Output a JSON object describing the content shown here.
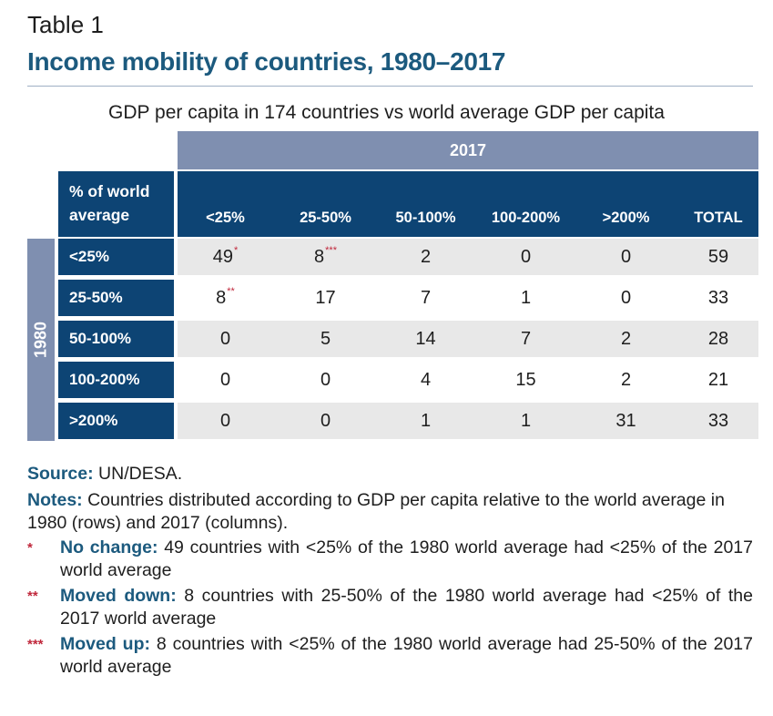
{
  "table_label": "Table 1",
  "title": "Income mobility of countries, 1980–2017",
  "subtitle": "GDP per capita in 174 countries vs world average GDP per capita",
  "column_group": "2017",
  "row_group": "1980",
  "corner_header": [
    "% of world",
    "average"
  ],
  "columns": [
    "<25%",
    "25-50%",
    "50-100%",
    "100-200%",
    ">200%",
    "TOTAL"
  ],
  "rows": [
    {
      "label": "<25%",
      "cells": [
        {
          "v": "49",
          "m": "*"
        },
        {
          "v": "8",
          "m": "***"
        },
        {
          "v": "2",
          "m": ""
        },
        {
          "v": "0",
          "m": ""
        },
        {
          "v": "0",
          "m": ""
        },
        {
          "v": "59",
          "m": ""
        }
      ]
    },
    {
      "label": "25-50%",
      "cells": [
        {
          "v": "8",
          "m": "**"
        },
        {
          "v": "17",
          "m": ""
        },
        {
          "v": "7",
          "m": ""
        },
        {
          "v": "1",
          "m": ""
        },
        {
          "v": "0",
          "m": ""
        },
        {
          "v": "33",
          "m": ""
        }
      ]
    },
    {
      "label": "50-100%",
      "cells": [
        {
          "v": "0",
          "m": ""
        },
        {
          "v": "5",
          "m": ""
        },
        {
          "v": "14",
          "m": ""
        },
        {
          "v": "7",
          "m": ""
        },
        {
          "v": "2",
          "m": ""
        },
        {
          "v": "28",
          "m": ""
        }
      ]
    },
    {
      "label": "100-200%",
      "cells": [
        {
          "v": "0",
          "m": ""
        },
        {
          "v": "0",
          "m": ""
        },
        {
          "v": "4",
          "m": ""
        },
        {
          "v": "15",
          "m": ""
        },
        {
          "v": "2",
          "m": ""
        },
        {
          "v": "21",
          "m": ""
        }
      ]
    },
    {
      "label": ">200%",
      "cells": [
        {
          "v": "0",
          "m": ""
        },
        {
          "v": "0",
          "m": ""
        },
        {
          "v": "1",
          "m": ""
        },
        {
          "v": "1",
          "m": ""
        },
        {
          "v": "31",
          "m": ""
        },
        {
          "v": "33",
          "m": ""
        }
      ]
    }
  ],
  "source": {
    "label": "Source:",
    "text": " UN/DESA."
  },
  "notes": {
    "label": "Notes:",
    "text": " Countries distributed according to GDP per capita relative to the world average in 1980 (rows) and 2017 (columns)."
  },
  "footnotes": [
    {
      "mark": "*",
      "label": "No change:",
      "text": " 49 countries with <25% of the 1980 world average had <25% of the 2017 world average"
    },
    {
      "mark": "**",
      "label": "Moved down:",
      "text": " 8 countries with 25-50% of the 1980 world average had <25% of the 2017 world average"
    },
    {
      "mark": "***",
      "label": "Moved up:",
      "text": " 8 countries with <25% of the 1980 world average had 25-50% of the 2017 world average"
    }
  ],
  "colors": {
    "title": "#1c5a7e",
    "header_dark": "#0d4474",
    "header_light": "#7f8fb0",
    "band": "#e8e8e8",
    "marker": "#c0283c"
  }
}
